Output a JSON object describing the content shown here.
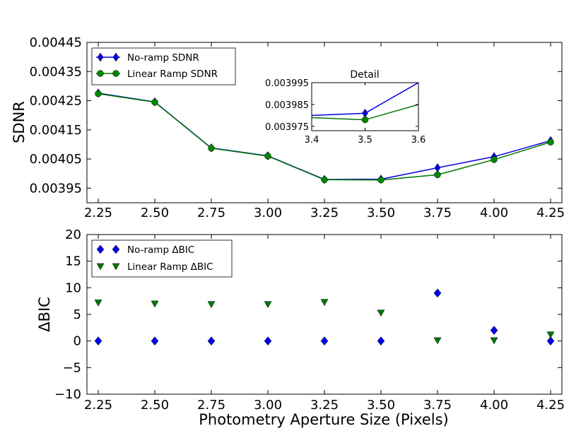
{
  "chart_data": [
    {
      "type": "line",
      "ylabel": "SDNR",
      "xlabel": "",
      "x": [
        2.25,
        2.5,
        2.75,
        3.0,
        3.25,
        3.5,
        3.75,
        4.0,
        4.25
      ],
      "xlim": [
        2.2,
        4.3
      ],
      "ylim": [
        0.0039,
        0.00445
      ],
      "x_ticks": [
        "2.25",
        "2.50",
        "2.75",
        "3.00",
        "3.25",
        "3.50",
        "3.75",
        "4.00",
        "4.25"
      ],
      "y_ticks": [
        "0.00445",
        "0.00435",
        "0.00425",
        "0.00415",
        "0.00405",
        "0.00395"
      ],
      "legend_position": "top-left",
      "series": [
        {
          "name": "No-ramp SDNR",
          "color": "#0000dd",
          "marker": "diamond",
          "values": [
            0.004276,
            0.004246,
            0.004088,
            0.004061,
            0.00398,
            0.003981,
            0.00402,
            0.004058,
            0.004113
          ]
        },
        {
          "name": "Linear Ramp SDNR",
          "color": "#007700",
          "marker": "circle",
          "values": [
            0.004274,
            0.004245,
            0.004087,
            0.00406,
            0.003979,
            0.003978,
            0.003996,
            0.004048,
            0.004108
          ]
        }
      ],
      "inset": {
        "title": "Detail",
        "x": [
          3.4,
          3.5,
          3.6
        ],
        "xlim": [
          3.4,
          3.6
        ],
        "ylim": [
          0.003973,
          0.003995
        ],
        "x_ticks": [
          "3.4",
          "3.5",
          "3.6"
        ],
        "y_ticks": [
          "0.003995",
          "0.003985",
          "0.003975"
        ],
        "series": [
          {
            "name": "No-ramp SDNR",
            "color": "#0000dd",
            "values": [
              0.00398,
              0.003981,
              0.003995
            ]
          },
          {
            "name": "Linear Ramp SDNR",
            "color": "#007700",
            "values": [
              0.003979,
              0.003978,
              0.003985
            ]
          }
        ]
      }
    },
    {
      "type": "scatter",
      "ylabel": "ΔBIC",
      "xlabel": "Photometry Aperture Size (Pixels)",
      "x": [
        2.25,
        2.5,
        2.75,
        3.0,
        3.25,
        3.5,
        3.75,
        4.0,
        4.25
      ],
      "xlim": [
        2.2,
        4.3
      ],
      "ylim": [
        -10,
        20
      ],
      "x_ticks": [
        "2.25",
        "2.50",
        "2.75",
        "3.00",
        "3.25",
        "3.50",
        "3.75",
        "4.00",
        "4.25"
      ],
      "y_ticks": [
        "20",
        "15",
        "10",
        "5",
        "0",
        "−5",
        "−10"
      ],
      "legend_position": "top-left",
      "series": [
        {
          "name": "No-ramp ΔBIC",
          "color": "#0000ee",
          "marker": "diamond",
          "values": [
            0,
            0,
            0,
            0,
            0,
            0,
            9,
            2,
            0
          ]
        },
        {
          "name": "Linear Ramp ΔBIC",
          "color": "#007700",
          "marker": "triangle-down",
          "values": [
            7.2,
            7.0,
            6.9,
            6.9,
            7.3,
            5.3,
            0.1,
            0.1,
            1.2
          ]
        }
      ]
    }
  ]
}
